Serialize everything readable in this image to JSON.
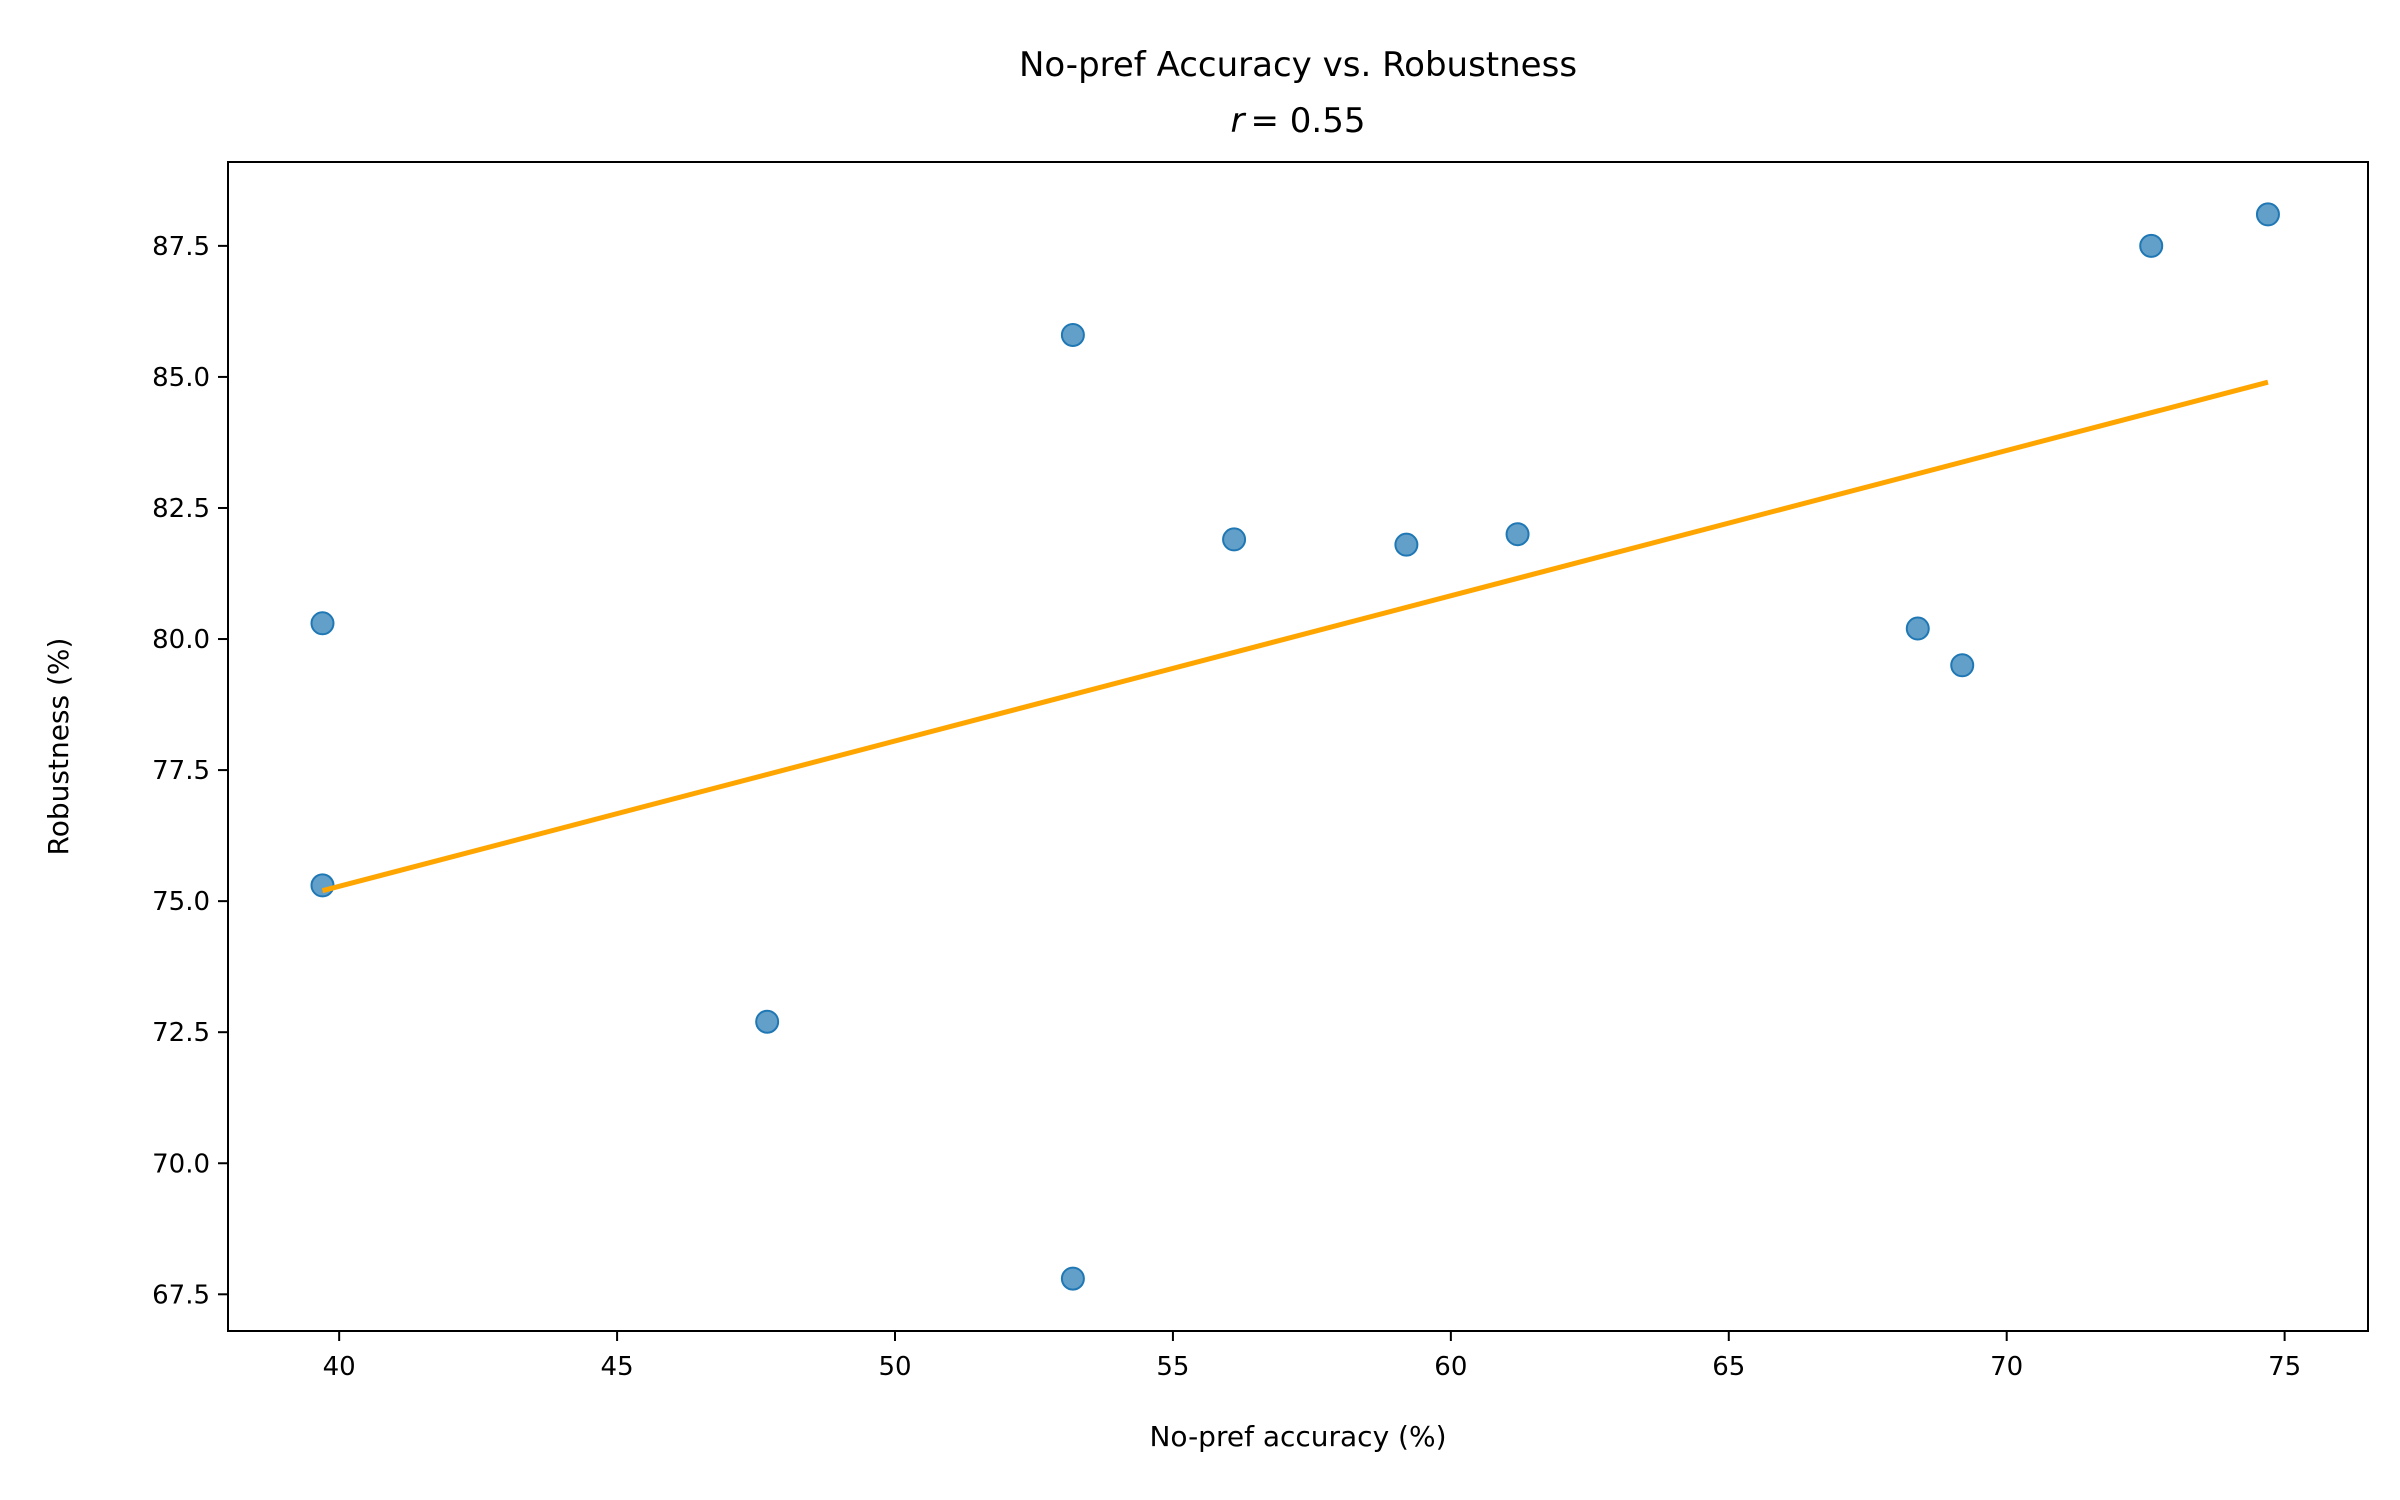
{
  "chart_data": {
    "type": "scatter",
    "title": "No-pref Accuracy vs. Robustness",
    "subtitle_var": "r",
    "subtitle_value": "= 0.55",
    "xlabel": "No-pref accuracy (%)",
    "ylabel": "Robustness (%)",
    "xlim": [
      38.0,
      76.5
    ],
    "ylim": [
      66.8,
      89.1
    ],
    "x_ticks": [
      40,
      45,
      50,
      55,
      60,
      65,
      70,
      75
    ],
    "x_tick_labels": [
      "40",
      "45",
      "50",
      "55",
      "60",
      "65",
      "70",
      "75"
    ],
    "y_ticks": [
      67.5,
      70.0,
      72.5,
      75.0,
      77.5,
      80.0,
      82.5,
      85.0,
      87.5
    ],
    "y_tick_labels": [
      "67.5",
      "70.0",
      "72.5",
      "75.0",
      "77.5",
      "80.0",
      "82.5",
      "85.0",
      "87.5"
    ],
    "grid": false,
    "series": [
      {
        "kind": "points",
        "color": "#1f77b4",
        "points": [
          {
            "x": 39.7,
            "y": 80.3
          },
          {
            "x": 39.7,
            "y": 75.3
          },
          {
            "x": 47.7,
            "y": 72.7
          },
          {
            "x": 53.2,
            "y": 85.8
          },
          {
            "x": 53.2,
            "y": 67.8
          },
          {
            "x": 56.1,
            "y": 81.9
          },
          {
            "x": 59.2,
            "y": 81.8
          },
          {
            "x": 61.2,
            "y": 82.0
          },
          {
            "x": 68.4,
            "y": 80.2
          },
          {
            "x": 69.2,
            "y": 79.5
          },
          {
            "x": 72.6,
            "y": 87.5
          },
          {
            "x": 74.7,
            "y": 88.1
          }
        ]
      },
      {
        "kind": "fit-line",
        "color": "#ffa500",
        "points": [
          {
            "x": 39.7,
            "y": 75.2
          },
          {
            "x": 74.7,
            "y": 84.9
          }
        ]
      }
    ]
  }
}
